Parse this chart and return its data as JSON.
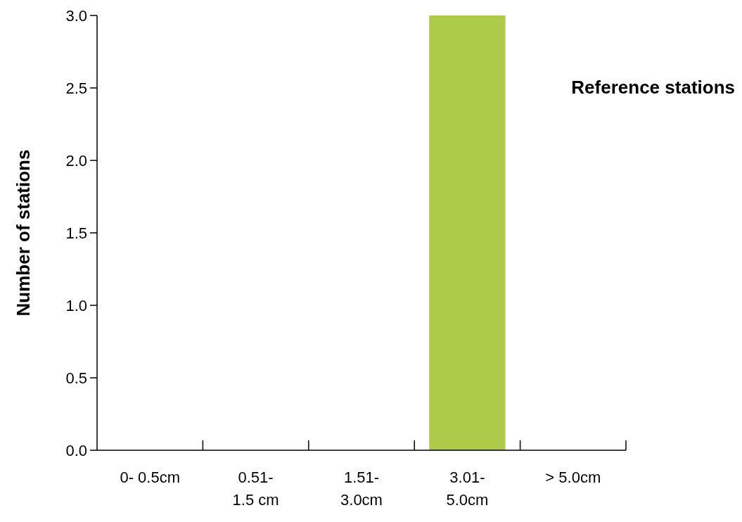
{
  "chart_data": {
    "type": "bar",
    "title": "Reference stations",
    "ylabel": "Number of stations",
    "categories": [
      "0- 0.5cm",
      "0.51-\n1.5 cm",
      "1.51-\n3.0cm",
      "3.01-\n5.0cm",
      "> 5.0cm"
    ],
    "values": [
      0,
      0,
      0,
      3,
      0
    ],
    "color": "#adcb48",
    "ylim": [
      0,
      3
    ],
    "yticks": [
      {
        "value": 0,
        "label": "0.0"
      },
      {
        "value": 0.5,
        "label": "0.5"
      },
      {
        "value": 1,
        "label": "1.0"
      },
      {
        "value": 1.5,
        "label": "1.5"
      },
      {
        "value": 2,
        "label": "2.0"
      },
      {
        "value": 2.5,
        "label": "2.5"
      },
      {
        "value": 3,
        "label": "3.0"
      }
    ],
    "grid": false
  }
}
